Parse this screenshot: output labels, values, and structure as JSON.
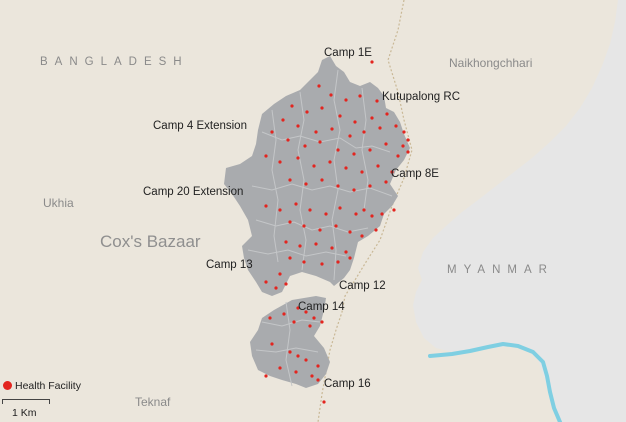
{
  "map": {
    "colors": {
      "land": "#ebe6dc",
      "myanmar": "#e6e6e6",
      "camps": "#a9abae",
      "camp_borders": "#c4c6c8",
      "river": "#7fcfe2",
      "health_facility": "#e3251f"
    },
    "countries": {
      "bangladesh": "BANGLADESH",
      "myanmar": "MYANMAR"
    },
    "places": {
      "naikhongchhari": "Naikhongchhari",
      "ukhia": "Ukhia",
      "coxs_bazaar": "Cox's Bazaar",
      "teknaf": "Teknaf"
    },
    "camps": {
      "camp_1e": "Camp 1E",
      "kutupalong_rc": "Kutupalong RC",
      "camp_4_extension": "Camp 4 Extension",
      "camp_8e": "Camp 8E",
      "camp_20_extension": "Camp 20 Extension",
      "camp_13": "Camp 13",
      "camp_12": "Camp 12",
      "camp_14": "Camp 14",
      "camp_16": "Camp 16"
    },
    "legend": {
      "health_facility": "Health Facility"
    },
    "scale": {
      "label": "1 Km"
    }
  }
}
